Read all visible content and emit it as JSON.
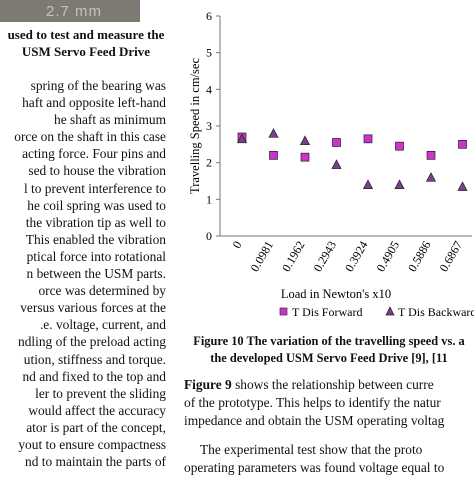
{
  "photo": {
    "overlay_text": "2.7 mm"
  },
  "left_caption": [
    "used to test and measure the",
    "USM Servo Feed Drive"
  ],
  "left_body": [
    "spring of the bearing was",
    "haft and opposite left-hand",
    "he shaft as minimum",
    "orce on the shaft in this case",
    "acting force. Four pins and",
    "sed to house the vibration",
    "l to prevent interference to",
    "he coil spring was used to",
    "the vibration tip as well to",
    "This enabled the vibration",
    "ptical force into rotational",
    "n between the USM parts.",
    "orce was determined by",
    "versus various forces at the",
    ".e. voltage, current, and",
    "ndling of the preload acting",
    "ution, stiffness and torque.",
    "nd and fixed to the top and",
    "ler to prevent the sliding",
    "would affect the accuracy",
    "ator is part of the concept,",
    "yout to ensure compactness",
    "nd to maintain the parts of"
  ],
  "figure_caption": [
    "Figure 10 The variation of the travelling speed vs. a",
    "the developed USM Servo Feed Drive [9], [11"
  ],
  "right_body": {
    "p1": [
      {
        "bold": "Figure 9",
        "rest": " shows the relationship between curre"
      },
      {
        "bold": "",
        "rest": "of the prototype. This helps to identify the natur"
      },
      {
        "bold": "",
        "rest": "impedance and obtain the USM operating voltag"
      }
    ],
    "p2": [
      "The experimental test show that the proto",
      "operating parameters was found voltage equal to"
    ]
  },
  "chart_data": {
    "type": "scatter",
    "title": "",
    "xlabel": "Load in Newton's x10",
    "ylabel": "Travelling Speed in cm/sec",
    "ylim": [
      0,
      6
    ],
    "y_ticks": [
      "0",
      "1",
      "2",
      "3",
      "4",
      "5",
      "6"
    ],
    "categories": [
      "0",
      "0.0981",
      "0.1962",
      "0.2943",
      "0.3924",
      "0.4905",
      "0.5886",
      "0.6867"
    ],
    "grid": false,
    "legend_position": "bottom",
    "series": [
      {
        "name": "T Dis Forward",
        "marker": "square",
        "color": "#cc33cc",
        "values": [
          2.7,
          2.2,
          2.15,
          2.55,
          2.65,
          2.45,
          2.2,
          2.5
        ]
      },
      {
        "name": "T Dis Backward",
        "marker": "triangle",
        "color": "#7a3d8f",
        "values": [
          2.65,
          2.8,
          2.6,
          1.95,
          1.4,
          1.4,
          1.6,
          1.35
        ]
      }
    ]
  }
}
